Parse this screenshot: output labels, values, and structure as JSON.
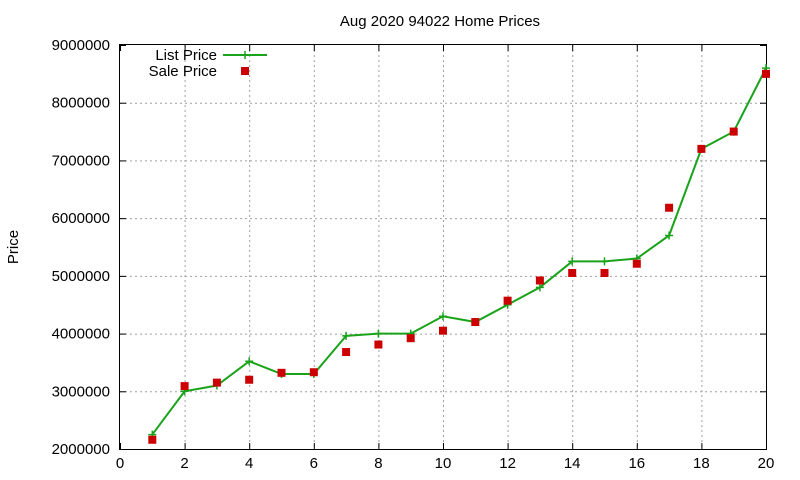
{
  "chart_data": {
    "type": "line",
    "title": "Aug 2020 94022 Home Prices",
    "xlabel": "",
    "ylabel": "Price",
    "xlim": [
      0,
      20
    ],
    "ylim": [
      2000000,
      9000000
    ],
    "x_ticks": [
      "0",
      "2",
      "4",
      "6",
      "8",
      "10",
      "12",
      "14",
      "16",
      "18",
      "20"
    ],
    "y_ticks": [
      "2000000",
      "3000000",
      "4000000",
      "5000000",
      "6000000",
      "7000000",
      "8000000",
      "9000000"
    ],
    "grid": true,
    "legend_position": "top-left",
    "x": [
      1,
      2,
      3,
      4,
      5,
      6,
      7,
      8,
      9,
      10,
      11,
      12,
      13,
      14,
      15,
      16,
      17,
      18,
      19,
      20
    ],
    "series": [
      {
        "name": "List Price",
        "style": "line-with-plus-markers",
        "color": "#1aa31a",
        "values": [
          2250000,
          3000000,
          3100000,
          3520000,
          3300000,
          3300000,
          3960000,
          4000000,
          4000000,
          4300000,
          4200000,
          4500000,
          4800000,
          5250000,
          5250000,
          5300000,
          5700000,
          7200000,
          7500000,
          8600000
        ]
      },
      {
        "name": "Sale Price",
        "style": "square-markers",
        "color": "#cc0000",
        "values": [
          2160000,
          3090000,
          3150000,
          3200000,
          3320000,
          3330000,
          3680000,
          3810000,
          3920000,
          4050000,
          4200000,
          4570000,
          4920000,
          5050000,
          5050000,
          5210000,
          6180000,
          7200000,
          7500000,
          8500000
        ]
      }
    ]
  }
}
